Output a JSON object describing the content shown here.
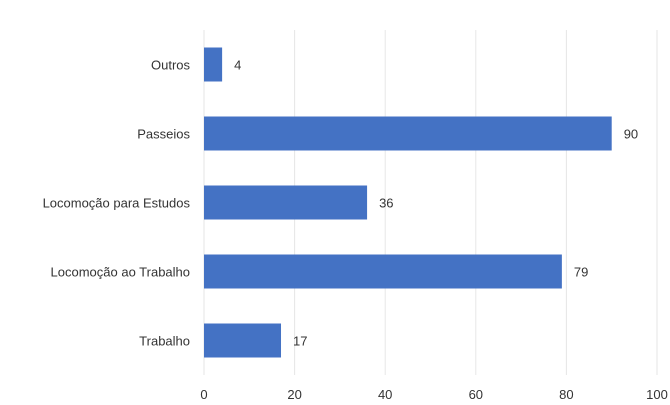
{
  "chart_data": {
    "type": "bar",
    "orientation": "horizontal",
    "categories": [
      "Outros",
      "Passeios",
      "Locomoção para Estudos",
      "Locomoção ao Trabalho",
      "Trabalho"
    ],
    "values": [
      4,
      90,
      36,
      79,
      17
    ],
    "data_labels": [
      "4",
      "90",
      "36",
      "79",
      "17"
    ],
    "xlim": [
      0,
      100
    ],
    "x_ticks": [
      0,
      20,
      40,
      60,
      80,
      100
    ],
    "x_tick_labels": [
      "0",
      "20",
      "40",
      "60",
      "80",
      "100"
    ],
    "grid": "vertical",
    "legend": "none",
    "bar_color": "#4472c4"
  }
}
